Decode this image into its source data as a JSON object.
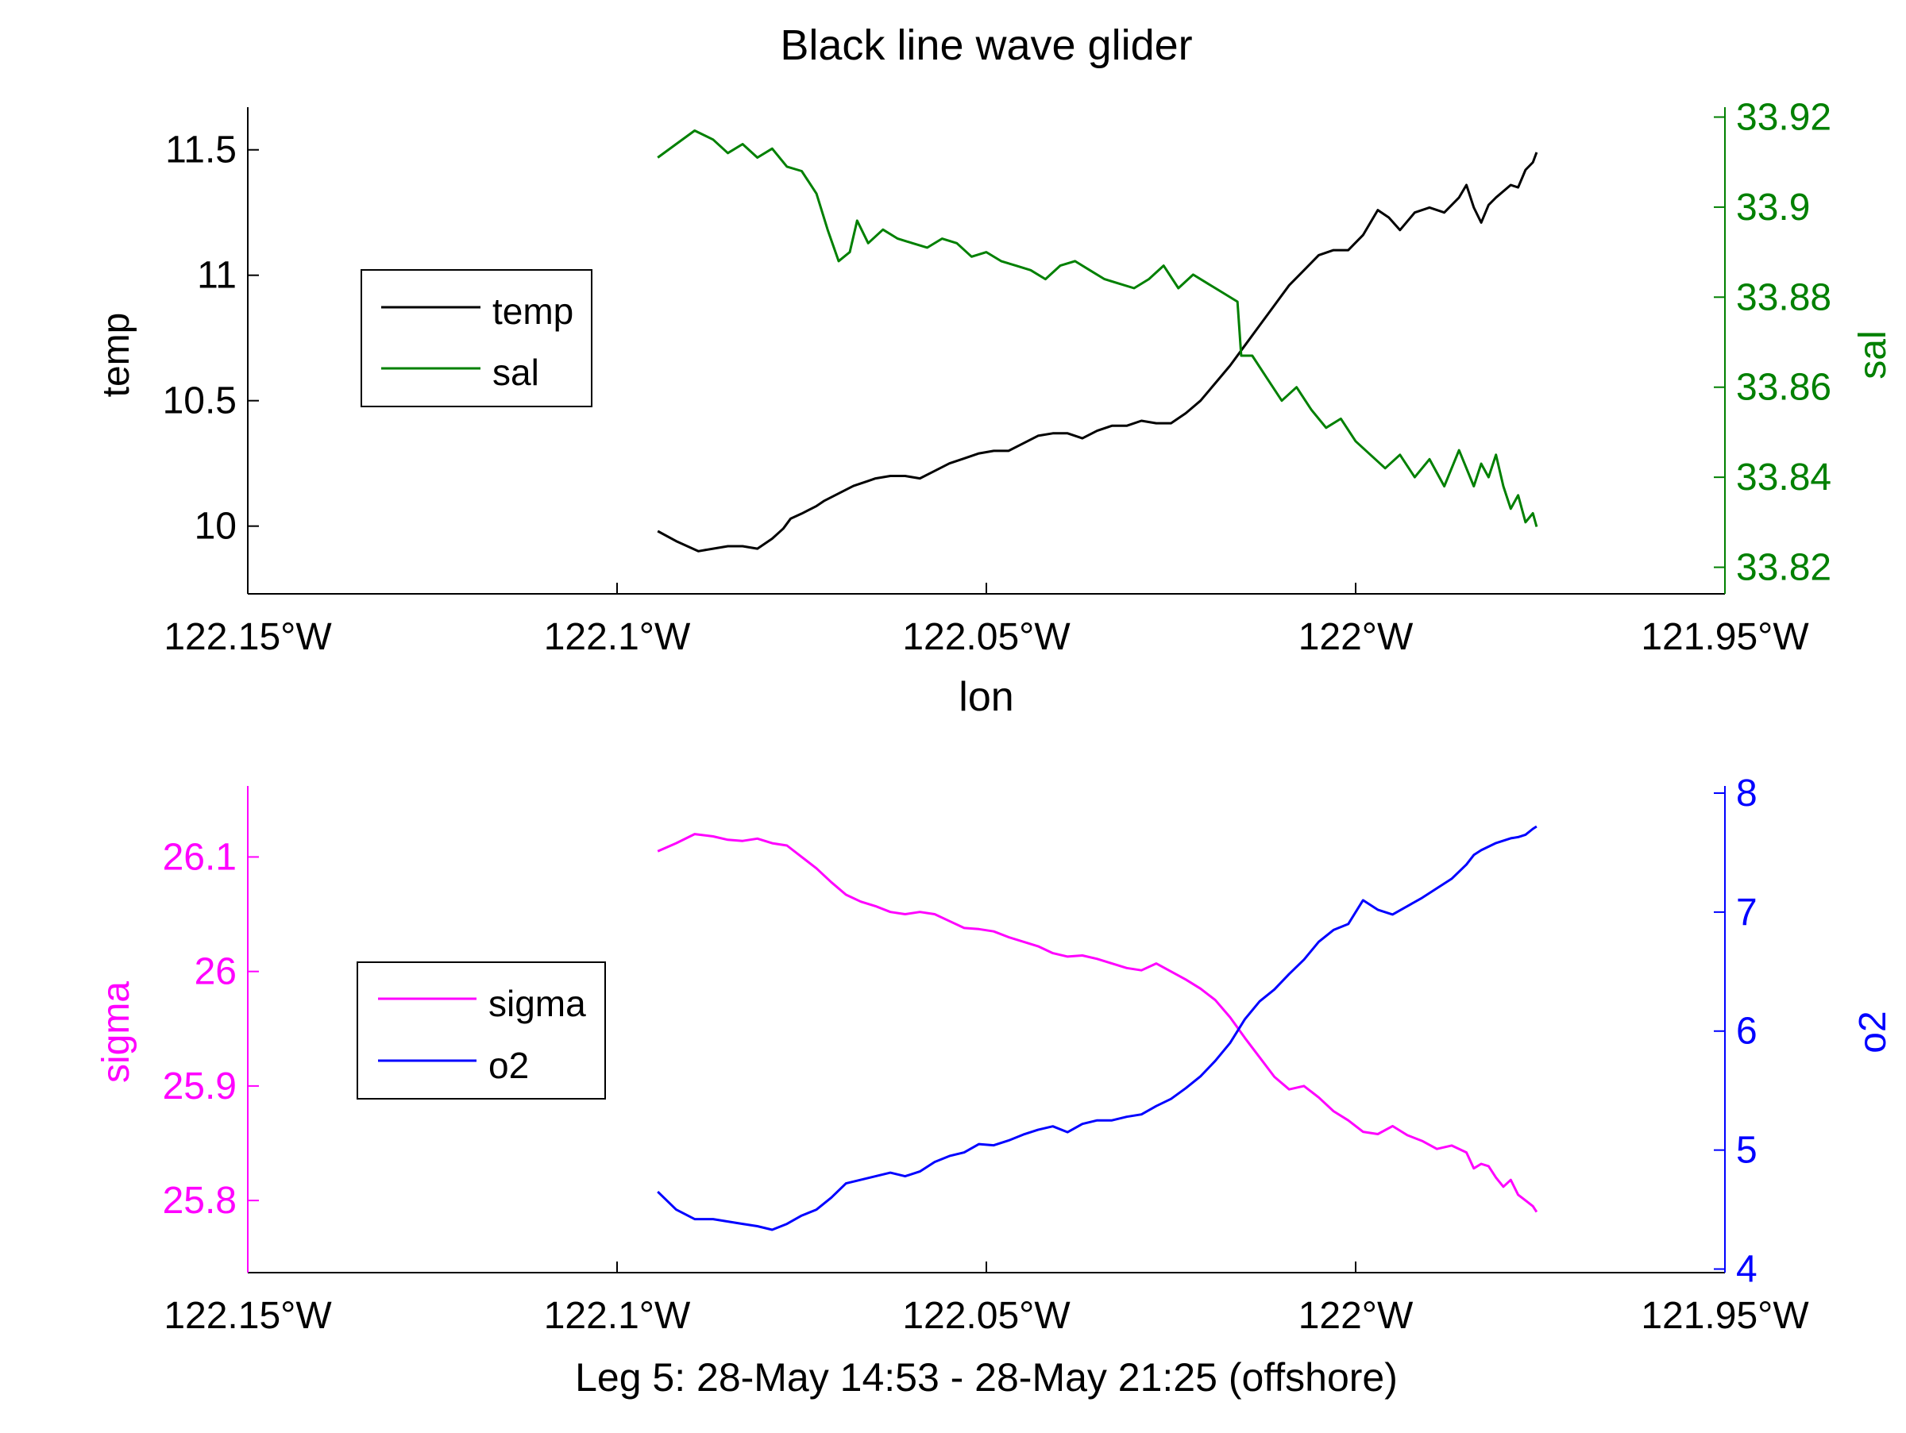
{
  "figure": {
    "title": "Black line wave glider",
    "footer": "Leg 5: 28-May 14:53 - 28-May 21:25 (offshore)"
  },
  "chart_data": [
    {
      "type": "line",
      "xlabel": "lon",
      "xlim": [
        -122.15,
        -121.95
      ],
      "x_ticks": [
        -122.15,
        -122.1,
        -122.05,
        -122.0,
        -121.95
      ],
      "x_tick_labels": [
        "122.15°W",
        "122.1°W",
        "122.05°W",
        "122°W",
        "121.95°W"
      ],
      "left_axis": {
        "label": "temp",
        "color": "#000000",
        "ylim": [
          9.73,
          11.67
        ],
        "ticks": [
          10,
          10.5,
          11,
          11.5
        ],
        "tick_labels": [
          "10",
          "10.5",
          "11",
          "11.5"
        ]
      },
      "right_axis": {
        "label": "sal",
        "color": "#008000",
        "ylim": [
          33.8141,
          33.9222
        ],
        "ticks": [
          33.82,
          33.84,
          33.86,
          33.88,
          33.9,
          33.92
        ],
        "tick_labels": [
          "33.82",
          "33.84",
          "33.86",
          "33.88",
          "33.9",
          "33.92"
        ]
      },
      "legend": {
        "placement": "center-left",
        "entries": [
          "temp",
          "sal"
        ]
      },
      "series": [
        {
          "name": "temp",
          "axis": "left",
          "color": "#000000",
          "x": [
            -122.0945,
            -122.092,
            -122.089,
            -122.087,
            -122.085,
            -122.083,
            -122.081,
            -122.079,
            -122.0775,
            -122.0765,
            -122.075,
            -122.073,
            -122.072,
            -122.07,
            -122.068,
            -122.066,
            -122.065,
            -122.063,
            -122.061,
            -122.059,
            -122.057,
            -122.055,
            -122.053,
            -122.051,
            -122.049,
            -122.047,
            -122.045,
            -122.043,
            -122.041,
            -122.039,
            -122.037,
            -122.035,
            -122.033,
            -122.031,
            -122.029,
            -122.027,
            -122.025,
            -122.023,
            -122.021,
            -122.019,
            -122.017,
            -122.015,
            -122.013,
            -122.011,
            -122.009,
            -122.007,
            -122.005,
            -122.003,
            -122.001,
            -121.999,
            -121.997,
            -121.9955,
            -121.994,
            -121.992,
            -121.99,
            -121.988,
            -121.986,
            -121.985,
            -121.984,
            -121.983,
            -121.982,
            -121.981,
            -121.979,
            -121.978,
            -121.977,
            -121.976,
            -121.9755
          ],
          "y": [
            9.98,
            9.94,
            9.9,
            9.91,
            9.92,
            9.92,
            9.91,
            9.95,
            9.99,
            10.03,
            10.05,
            10.08,
            10.1,
            10.13,
            10.16,
            10.18,
            10.19,
            10.2,
            10.2,
            10.19,
            10.22,
            10.25,
            10.27,
            10.29,
            10.3,
            10.3,
            10.33,
            10.36,
            10.37,
            10.37,
            10.35,
            10.38,
            10.4,
            10.4,
            10.42,
            10.41,
            10.41,
            10.45,
            10.5,
            10.57,
            10.64,
            10.72,
            10.8,
            10.88,
            10.96,
            11.02,
            11.08,
            11.1,
            11.1,
            11.16,
            11.26,
            11.23,
            11.18,
            11.25,
            11.27,
            11.25,
            11.31,
            11.36,
            11.27,
            11.21,
            11.28,
            11.31,
            11.36,
            11.35,
            11.42,
            11.45,
            11.49
          ]
        },
        {
          "name": "sal",
          "axis": "right",
          "color": "#008000",
          "x": [
            -122.0945,
            -122.092,
            -122.0895,
            -122.087,
            -122.085,
            -122.083,
            -122.081,
            -122.079,
            -122.077,
            -122.075,
            -122.073,
            -122.0715,
            -122.07,
            -122.0685,
            -122.0675,
            -122.066,
            -122.064,
            -122.062,
            -122.06,
            -122.058,
            -122.056,
            -122.054,
            -122.052,
            -122.05,
            -122.048,
            -122.046,
            -122.044,
            -122.042,
            -122.04,
            -122.038,
            -122.036,
            -122.034,
            -122.032,
            -122.03,
            -122.028,
            -122.026,
            -122.024,
            -122.022,
            -122.02,
            -122.018,
            -122.016,
            -122.0155,
            -122.014,
            -122.012,
            -122.01,
            -122.008,
            -122.006,
            -122.004,
            -122.002,
            -122.0,
            -121.998,
            -121.996,
            -121.994,
            -121.992,
            -121.99,
            -121.988,
            -121.986,
            -121.984,
            -121.983,
            -121.982,
            -121.981,
            -121.98,
            -121.979,
            -121.978,
            -121.977,
            -121.976,
            -121.9755
          ],
          "y": [
            33.911,
            33.914,
            33.917,
            33.915,
            33.912,
            33.914,
            33.911,
            33.913,
            33.909,
            33.908,
            33.903,
            33.895,
            33.888,
            33.89,
            33.897,
            33.892,
            33.895,
            33.893,
            33.892,
            33.891,
            33.893,
            33.892,
            33.889,
            33.89,
            33.888,
            33.887,
            33.886,
            33.884,
            33.887,
            33.888,
            33.886,
            33.884,
            33.883,
            33.882,
            33.884,
            33.887,
            33.882,
            33.885,
            33.883,
            33.881,
            33.879,
            33.867,
            33.867,
            33.862,
            33.857,
            33.86,
            33.855,
            33.851,
            33.853,
            33.848,
            33.845,
            33.842,
            33.845,
            33.84,
            33.844,
            33.838,
            33.846,
            33.838,
            33.843,
            33.84,
            33.845,
            33.838,
            33.833,
            33.836,
            33.83,
            33.832,
            33.829
          ]
        }
      ]
    },
    {
      "type": "line",
      "xlabel": "",
      "xlim": [
        -122.15,
        -121.95
      ],
      "x_ticks": [
        -122.15,
        -122.1,
        -122.05,
        -122.0,
        -121.95
      ],
      "x_tick_labels": [
        "122.15°W",
        "122.1°W",
        "122.05°W",
        "122°W",
        "121.95°W"
      ],
      "left_axis": {
        "label": "sigma",
        "color": "#ff00ff",
        "ylim": [
          25.737,
          26.162
        ],
        "ticks": [
          25.8,
          25.9,
          26,
          26.1
        ],
        "tick_labels": [
          "25.8",
          "25.9",
          "26",
          "26.1"
        ]
      },
      "right_axis": {
        "label": "o2",
        "color": "#0000ff",
        "ylim": [
          3.97,
          8.06
        ],
        "ticks": [
          4,
          5,
          6,
          7,
          8
        ],
        "tick_labels": [
          "4",
          "5",
          "6",
          "7",
          "8"
        ]
      },
      "legend": {
        "placement": "center-left",
        "entries": [
          "sigma",
          "o2"
        ]
      },
      "series": [
        {
          "name": "sigma",
          "axis": "left",
          "color": "#ff00ff",
          "x": [
            -122.0945,
            -122.092,
            -122.0895,
            -122.087,
            -122.085,
            -122.083,
            -122.081,
            -122.079,
            -122.077,
            -122.075,
            -122.073,
            -122.071,
            -122.069,
            -122.067,
            -122.065,
            -122.063,
            -122.061,
            -122.059,
            -122.057,
            -122.055,
            -122.053,
            -122.051,
            -122.049,
            -122.047,
            -122.045,
            -122.043,
            -122.041,
            -122.039,
            -122.037,
            -122.035,
            -122.033,
            -122.031,
            -122.029,
            -122.027,
            -122.025,
            -122.023,
            -122.021,
            -122.019,
            -122.017,
            -122.015,
            -122.013,
            -122.011,
            -122.009,
            -122.007,
            -122.005,
            -122.003,
            -122.001,
            -121.999,
            -121.997,
            -121.995,
            -121.993,
            -121.991,
            -121.989,
            -121.987,
            -121.985,
            -121.984,
            -121.983,
            -121.982,
            -121.981,
            -121.98,
            -121.979,
            -121.978,
            -121.977,
            -121.976,
            -121.9755
          ],
          "y": [
            26.105,
            26.112,
            26.12,
            26.118,
            26.115,
            26.114,
            26.116,
            26.112,
            26.11,
            26.1,
            26.09,
            26.078,
            26.067,
            26.061,
            26.057,
            26.052,
            26.05,
            26.052,
            26.05,
            26.044,
            26.038,
            26.037,
            26.035,
            26.03,
            26.026,
            26.022,
            26.016,
            26.013,
            26.014,
            26.011,
            26.007,
            26.003,
            26.001,
            26.007,
            26.0,
            25.993,
            25.985,
            25.975,
            25.96,
            25.942,
            25.925,
            25.908,
            25.897,
            25.9,
            25.89,
            25.878,
            25.87,
            25.86,
            25.858,
            25.865,
            25.857,
            25.852,
            25.845,
            25.848,
            25.842,
            25.828,
            25.832,
            25.83,
            25.82,
            25.812,
            25.818,
            25.805,
            25.8,
            25.795,
            25.79
          ]
        },
        {
          "name": "o2",
          "axis": "right",
          "color": "#0000ff",
          "x": [
            -122.0945,
            -122.092,
            -122.0895,
            -122.087,
            -122.085,
            -122.083,
            -122.081,
            -122.079,
            -122.077,
            -122.075,
            -122.073,
            -122.071,
            -122.069,
            -122.067,
            -122.065,
            -122.063,
            -122.061,
            -122.059,
            -122.057,
            -122.055,
            -122.053,
            -122.051,
            -122.049,
            -122.047,
            -122.045,
            -122.043,
            -122.041,
            -122.039,
            -122.037,
            -122.035,
            -122.033,
            -122.031,
            -122.029,
            -122.027,
            -122.025,
            -122.023,
            -122.021,
            -122.019,
            -122.017,
            -122.015,
            -122.013,
            -122.011,
            -122.009,
            -122.007,
            -122.005,
            -122.003,
            -122.001,
            -121.999,
            -121.997,
            -121.995,
            -121.993,
            -121.991,
            -121.989,
            -121.987,
            -121.985,
            -121.984,
            -121.983,
            -121.982,
            -121.981,
            -121.98,
            -121.979,
            -121.978,
            -121.977,
            -121.976,
            -121.9755
          ],
          "y": [
            4.65,
            4.5,
            4.42,
            4.42,
            4.4,
            4.38,
            4.36,
            4.33,
            4.38,
            4.45,
            4.5,
            4.6,
            4.72,
            4.75,
            4.78,
            4.81,
            4.78,
            4.82,
            4.9,
            4.95,
            4.98,
            5.05,
            5.04,
            5.08,
            5.13,
            5.17,
            5.2,
            5.15,
            5.22,
            5.25,
            5.25,
            5.28,
            5.3,
            5.37,
            5.43,
            5.52,
            5.62,
            5.75,
            5.9,
            6.1,
            6.25,
            6.35,
            6.48,
            6.6,
            6.75,
            6.85,
            6.9,
            7.1,
            7.02,
            6.98,
            7.05,
            7.12,
            7.2,
            7.28,
            7.4,
            7.48,
            7.52,
            7.55,
            7.58,
            7.6,
            7.62,
            7.63,
            7.65,
            7.7,
            7.72
          ]
        }
      ]
    }
  ]
}
